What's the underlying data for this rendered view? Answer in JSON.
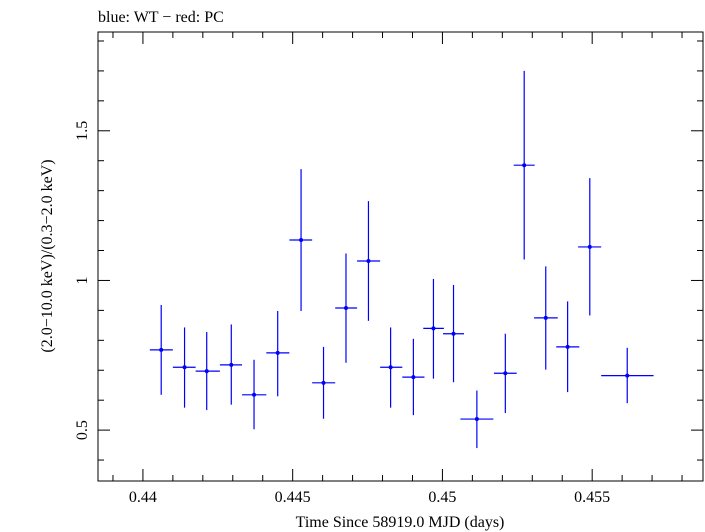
{
  "chart_data": {
    "type": "scatter",
    "title": "blue: WT − red: PC",
    "xlabel": "Time Since 58919.0 MJD (days)",
    "ylabel": "(2.0−10.0 keV)/(0.3−2.0 keV)",
    "xlim": [
      0.4385,
      0.4587
    ],
    "ylim": [
      0.33,
      1.83
    ],
    "x_ticks": [
      {
        "value": 0.44,
        "label": "0.44"
      },
      {
        "value": 0.445,
        "label": "0.445"
      },
      {
        "value": 0.45,
        "label": "0.45"
      },
      {
        "value": 0.455,
        "label": "0.455"
      }
    ],
    "y_ticks": [
      {
        "value": 0.5,
        "label": "0.5"
      },
      {
        "value": 1.0,
        "label": "1"
      },
      {
        "value": 1.5,
        "label": "1.5"
      }
    ],
    "grid": false,
    "series": [
      {
        "color": "#0000ff",
        "marker": "point-with-errorbars",
        "points": [
          {
            "x": 0.44061,
            "y": 0.768,
            "xlo": 0.44023,
            "xhi": 0.441,
            "ylo": 0.618,
            "yhi": 0.918
          },
          {
            "x": 0.44139,
            "y": 0.71,
            "xlo": 0.441,
            "xhi": 0.44176,
            "ylo": 0.575,
            "yhi": 0.843
          },
          {
            "x": 0.44213,
            "y": 0.697,
            "xlo": 0.44176,
            "xhi": 0.44257,
            "ylo": 0.567,
            "yhi": 0.828
          },
          {
            "x": 0.44295,
            "y": 0.718,
            "xlo": 0.44257,
            "xhi": 0.44331,
            "ylo": 0.585,
            "yhi": 0.853
          },
          {
            "x": 0.44371,
            "y": 0.618,
            "xlo": 0.44331,
            "xhi": 0.44412,
            "ylo": 0.503,
            "yhi": 0.735
          },
          {
            "x": 0.4445,
            "y": 0.758,
            "xlo": 0.44412,
            "xhi": 0.44489,
            "ylo": 0.613,
            "yhi": 0.898
          },
          {
            "x": 0.44528,
            "y": 1.135,
            "xlo": 0.44489,
            "xhi": 0.44565,
            "ylo": 0.898,
            "yhi": 1.372
          },
          {
            "x": 0.44603,
            "y": 0.658,
            "xlo": 0.44565,
            "xhi": 0.44642,
            "ylo": 0.538,
            "yhi": 0.778
          },
          {
            "x": 0.44678,
            "y": 0.908,
            "xlo": 0.44642,
            "xhi": 0.44715,
            "ylo": 0.725,
            "yhi": 1.09
          },
          {
            "x": 0.44753,
            "y": 1.065,
            "xlo": 0.44715,
            "xhi": 0.44792,
            "ylo": 0.865,
            "yhi": 1.265
          },
          {
            "x": 0.44827,
            "y": 0.71,
            "xlo": 0.44792,
            "xhi": 0.44866,
            "ylo": 0.575,
            "yhi": 0.843
          },
          {
            "x": 0.44903,
            "y": 0.677,
            "xlo": 0.44866,
            "xhi": 0.4494,
            "ylo": 0.55,
            "yhi": 0.805
          },
          {
            "x": 0.4497,
            "y": 0.84,
            "xlo": 0.44936,
            "xhi": 0.45005,
            "ylo": 0.672,
            "yhi": 1.005
          },
          {
            "x": 0.45037,
            "y": 0.822,
            "xlo": 0.45002,
            "xhi": 0.45072,
            "ylo": 0.66,
            "yhi": 0.985
          },
          {
            "x": 0.45115,
            "y": 0.537,
            "xlo": 0.4506,
            "xhi": 0.4517,
            "ylo": 0.44,
            "yhi": 0.632
          },
          {
            "x": 0.4521,
            "y": 0.69,
            "xlo": 0.45172,
            "xhi": 0.45248,
            "ylo": 0.557,
            "yhi": 0.822
          },
          {
            "x": 0.45273,
            "y": 1.385,
            "xlo": 0.45238,
            "xhi": 0.45308,
            "ylo": 1.07,
            "yhi": 1.7
          },
          {
            "x": 0.45345,
            "y": 0.875,
            "xlo": 0.45306,
            "xhi": 0.45385,
            "ylo": 0.702,
            "yhi": 1.047
          },
          {
            "x": 0.45418,
            "y": 0.778,
            "xlo": 0.4538,
            "xhi": 0.45457,
            "ylo": 0.627,
            "yhi": 0.93
          },
          {
            "x": 0.45492,
            "y": 1.112,
            "xlo": 0.45453,
            "xhi": 0.4553,
            "ylo": 0.883,
            "yhi": 1.342
          },
          {
            "x": 0.45617,
            "y": 0.682,
            "xlo": 0.4553,
            "xhi": 0.45705,
            "ylo": 0.59,
            "yhi": 0.775
          }
        ]
      }
    ]
  }
}
